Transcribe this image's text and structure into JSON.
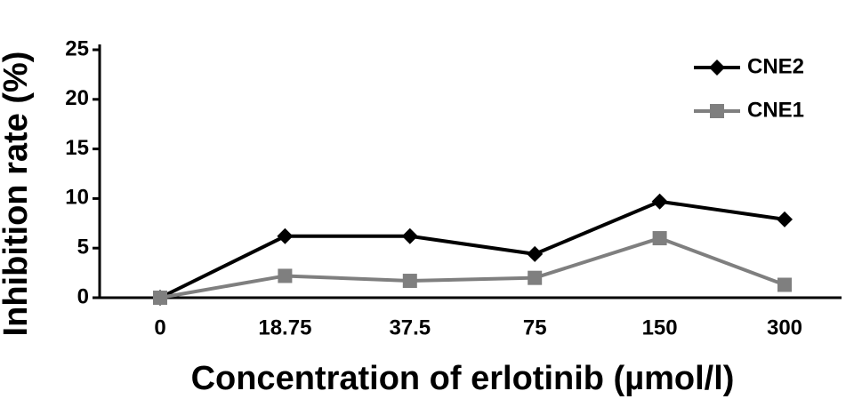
{
  "chart_data": {
    "type": "line",
    "x_label": "Concentration of erlotinib (µmol/l)",
    "y_label": "Inhibition rate (%)",
    "categories": [
      "0",
      "18.75",
      "37.5",
      "75",
      "150",
      "300"
    ],
    "series": [
      {
        "name": "CNE2",
        "color": "#000000",
        "marker": "diamond",
        "values": [
          0,
          6.2,
          6.2,
          4.4,
          9.7,
          7.9
        ]
      },
      {
        "name": "CNE1",
        "color": "#7f7f7f",
        "marker": "square",
        "values": [
          0,
          2.2,
          1.7,
          2.0,
          6.0,
          1.3
        ]
      }
    ],
    "ylim": [
      0,
      25
    ],
    "yticks": [
      0,
      5,
      10,
      15,
      20,
      25
    ],
    "legend": "upper right",
    "grid": false
  }
}
